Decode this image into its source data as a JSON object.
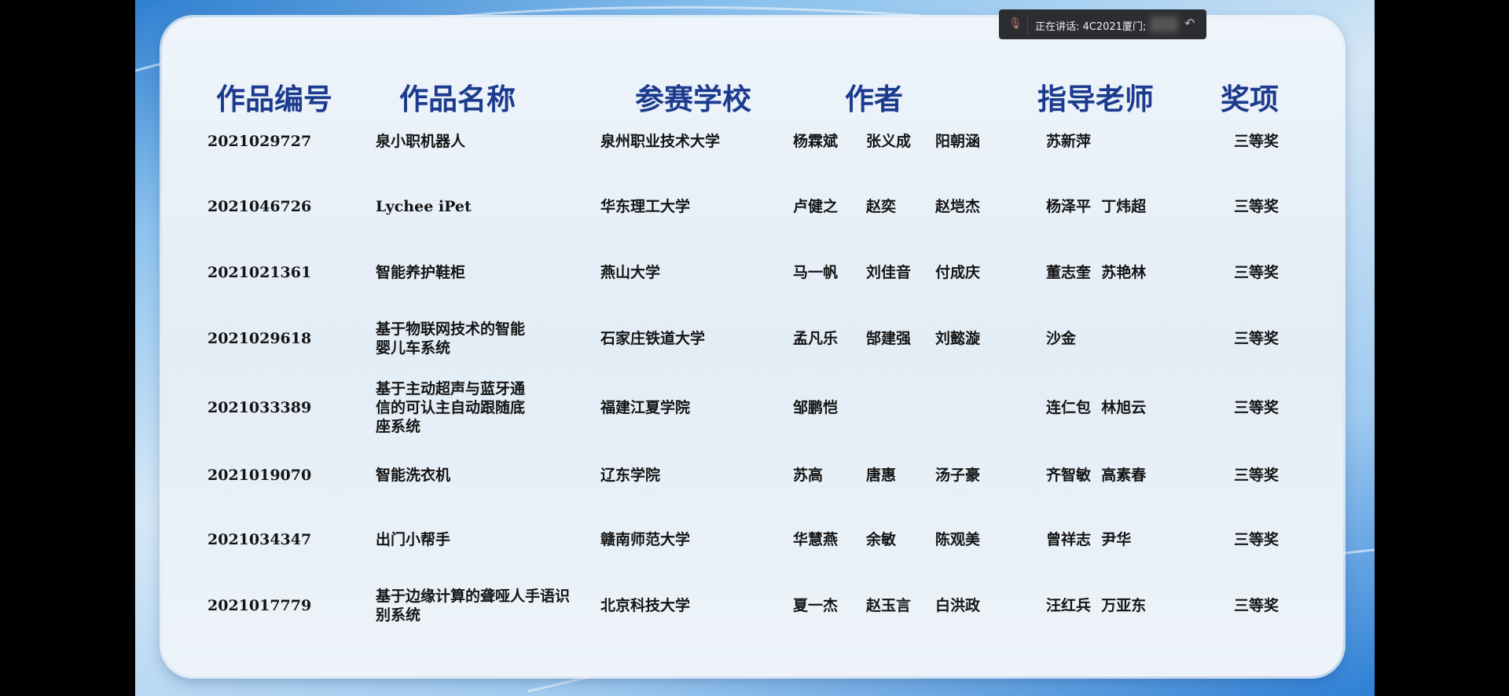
{
  "headers": {
    "id": "作品编号",
    "name": "作品名称",
    "school": "参赛学校",
    "authors": "作者",
    "teachers": "指导老师",
    "award": "奖项"
  },
  "rows": [
    {
      "id": "2021029727",
      "name": [
        "泉小职机器人"
      ],
      "school": "泉州职业技术大学",
      "authors": [
        "杨霖斌",
        "张义成",
        "阳朝涵"
      ],
      "teachers": "苏新萍",
      "award": "三等奖"
    },
    {
      "id": "2021046726",
      "name": [
        "Lychee iPet"
      ],
      "school": "华东理工大学",
      "authors": [
        "卢健之",
        "赵奕",
        "赵垲杰"
      ],
      "teachers": "杨泽平  丁炜超",
      "award": "三等奖"
    },
    {
      "id": "2021021361",
      "name": [
        "智能养护鞋柜"
      ],
      "school": "燕山大学",
      "authors": [
        "马一帆",
        "刘佳音",
        "付成庆"
      ],
      "teachers": "董志奎  苏艳林",
      "award": "三等奖"
    },
    {
      "id": "2021029618",
      "name": [
        "基于物联网技术的智能",
        "婴儿车系统"
      ],
      "school": "石家庄铁道大学",
      "authors": [
        "孟凡乐",
        "郜建强",
        "刘懿漩"
      ],
      "teachers": "沙金",
      "award": "三等奖"
    },
    {
      "id": "2021033389",
      "name": [
        "基于主动超声与蓝牙通",
        "信的可认主自动跟随底",
        "座系统"
      ],
      "school": "福建江夏学院",
      "authors": [
        "邹鹏恺",
        "",
        ""
      ],
      "teachers": "连仁包  林旭云",
      "award": "三等奖"
    },
    {
      "id": "2021019070",
      "name": [
        "智能洗衣机"
      ],
      "school": "辽东学院",
      "authors": [
        "苏高",
        "唐惠",
        "汤子豪"
      ],
      "teachers": "齐智敏  高素春",
      "award": "三等奖"
    },
    {
      "id": "2021034347",
      "name": [
        "出门小帮手"
      ],
      "school": "赣南师范大学",
      "authors": [
        "华慧燕",
        "余敏",
        "陈观美"
      ],
      "teachers": "曾祥志  尹华",
      "award": "三等奖"
    },
    {
      "id": "2021017779",
      "name": [
        "基于边缘计算的聋哑人手语识",
        "别系统"
      ],
      "school": "北京科技大学",
      "authors": [
        "夏一杰",
        "赵玉言",
        "白洪政"
      ],
      "teachers": "汪红兵  万亚东",
      "award": "三等奖"
    }
  ],
  "toast": {
    "text": "正在讲话: 4C2021厦门;",
    "icon": "muted-mic-icon",
    "action_icon": "reply-arrow-icon"
  },
  "colors": {
    "header": "#1c3b8e",
    "text": "#141414",
    "background": "#000000"
  }
}
